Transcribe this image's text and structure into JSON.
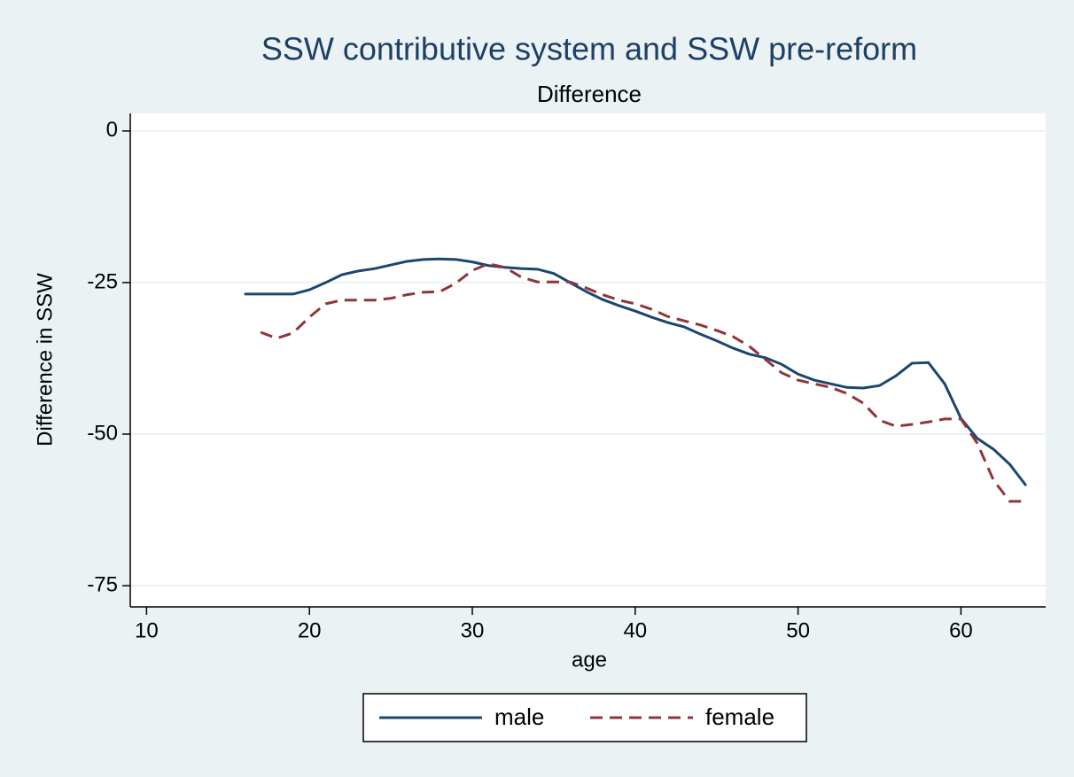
{
  "chart_data": {
    "type": "line",
    "title": "SSW contributive system and SSW pre-reform",
    "subtitle": "Difference",
    "x_label": "age",
    "y_label": "Difference in SSW",
    "x": [
      16,
      17,
      18,
      19,
      20,
      21,
      22,
      23,
      24,
      25,
      26,
      27,
      28,
      29,
      30,
      31,
      32,
      33,
      34,
      35,
      36,
      37,
      38,
      39,
      40,
      41,
      42,
      43,
      44,
      45,
      46,
      47,
      48,
      49,
      50,
      51,
      52,
      53,
      54,
      55,
      56,
      57,
      58,
      59,
      60,
      61,
      62,
      63,
      64
    ],
    "series": [
      {
        "name": "male",
        "color": "#1a476f",
        "dash": "solid",
        "values": [
          -26.9,
          -26.9,
          -26.9,
          -26.9,
          -26.2,
          -25.0,
          -23.7,
          -23.1,
          -22.7,
          -22.1,
          -21.5,
          -21.2,
          -21.1,
          -21.2,
          -21.6,
          -22.2,
          -22.5,
          -22.7,
          -22.8,
          -23.5,
          -25.0,
          -26.5,
          -27.8,
          -28.8,
          -29.7,
          -30.7,
          -31.6,
          -32.3,
          -33.5,
          -34.6,
          -35.8,
          -36.8,
          -37.4,
          -38.5,
          -40.1,
          -41.1,
          -41.7,
          -42.3,
          -42.4,
          -42.0,
          -40.4,
          -38.3,
          -38.2,
          -41.7,
          -47.4,
          -50.7,
          -52.5,
          -55.0,
          -58.5
        ]
      },
      {
        "name": "female",
        "color": "#90353b",
        "dash": "dashed",
        "values": [
          null,
          -33.2,
          -34.2,
          -33.3,
          -30.7,
          -28.5,
          -27.9,
          -27.9,
          -27.9,
          -27.6,
          -27.0,
          -26.6,
          -26.5,
          -25.1,
          -23.0,
          -21.9,
          -22.5,
          -24.1,
          -24.9,
          -24.9,
          -24.9,
          -25.9,
          -27.0,
          -27.9,
          -28.5,
          -29.4,
          -30.6,
          -31.3,
          -32.0,
          -32.9,
          -33.9,
          -35.5,
          -37.7,
          -39.9,
          -41.1,
          -41.7,
          -42.3,
          -43.3,
          -44.9,
          -47.7,
          -48.7,
          -48.4,
          -48.0,
          -47.5,
          -47.5,
          -51.5,
          -57.6,
          -61.1,
          -61.1
        ]
      }
    ],
    "xlim": [
      9,
      65.2
    ],
    "xticks": [
      10,
      20,
      30,
      40,
      50,
      60
    ],
    "ylim": [
      -78.5,
      2.9
    ],
    "yticks": [
      -75,
      -50,
      -25,
      0
    ],
    "grid": true,
    "legend": "bottom"
  }
}
